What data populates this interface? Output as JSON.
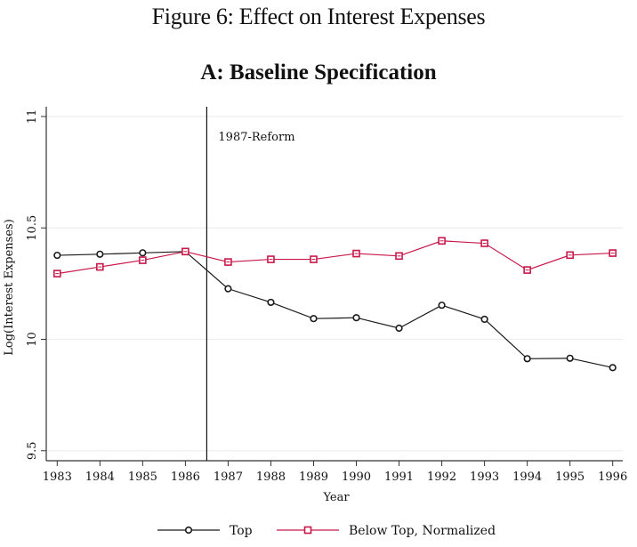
{
  "figure": {
    "title": "Figure 6: Effect on Interest Expenses",
    "panel_title": "A: Baseline Specification"
  },
  "colors": {
    "top": "#1a1a1a",
    "below_top": "#c8184a",
    "grid": "#eeeeee",
    "axis": "#333333"
  },
  "chart_data": {
    "type": "line",
    "title": "A: Baseline Specification",
    "xlabel": "Year",
    "ylabel": "Log(Interest Expenses)",
    "x": [
      1983,
      1984,
      1985,
      1986,
      1987,
      1988,
      1989,
      1990,
      1991,
      1992,
      1993,
      1994,
      1995,
      1996
    ],
    "xticks": [
      "1983",
      "1984",
      "1985",
      "1986",
      "1987",
      "1988",
      "1989",
      "1990",
      "1991",
      "1992",
      "1993",
      "1994",
      "1995",
      "1996"
    ],
    "yticks": [
      9.5,
      10,
      10.5,
      11
    ],
    "ytick_labels": [
      "9.5",
      "10",
      "10.5",
      "11"
    ],
    "ylim": [
      9.45,
      11.04
    ],
    "xlim": [
      1982.76,
      1996.8
    ],
    "grid": true,
    "legend_position": "bottom",
    "series": [
      {
        "name": "Top",
        "marker": "circle",
        "color": "#1a1a1a",
        "values": [
          10.377,
          10.382,
          10.388,
          10.394,
          10.227,
          10.166,
          10.093,
          10.097,
          10.05,
          10.153,
          10.09,
          9.913,
          9.915,
          9.873
        ]
      },
      {
        "name": "Below Top, Normalized",
        "marker": "square",
        "color": "#c8184a",
        "values": [
          10.295,
          10.325,
          10.355,
          10.394,
          10.347,
          10.359,
          10.359,
          10.385,
          10.374,
          10.442,
          10.431,
          10.311,
          10.378,
          10.387
        ]
      }
    ],
    "annotations": [
      {
        "type": "vline",
        "x": 1986.5,
        "label": "1987-Reform"
      }
    ]
  }
}
